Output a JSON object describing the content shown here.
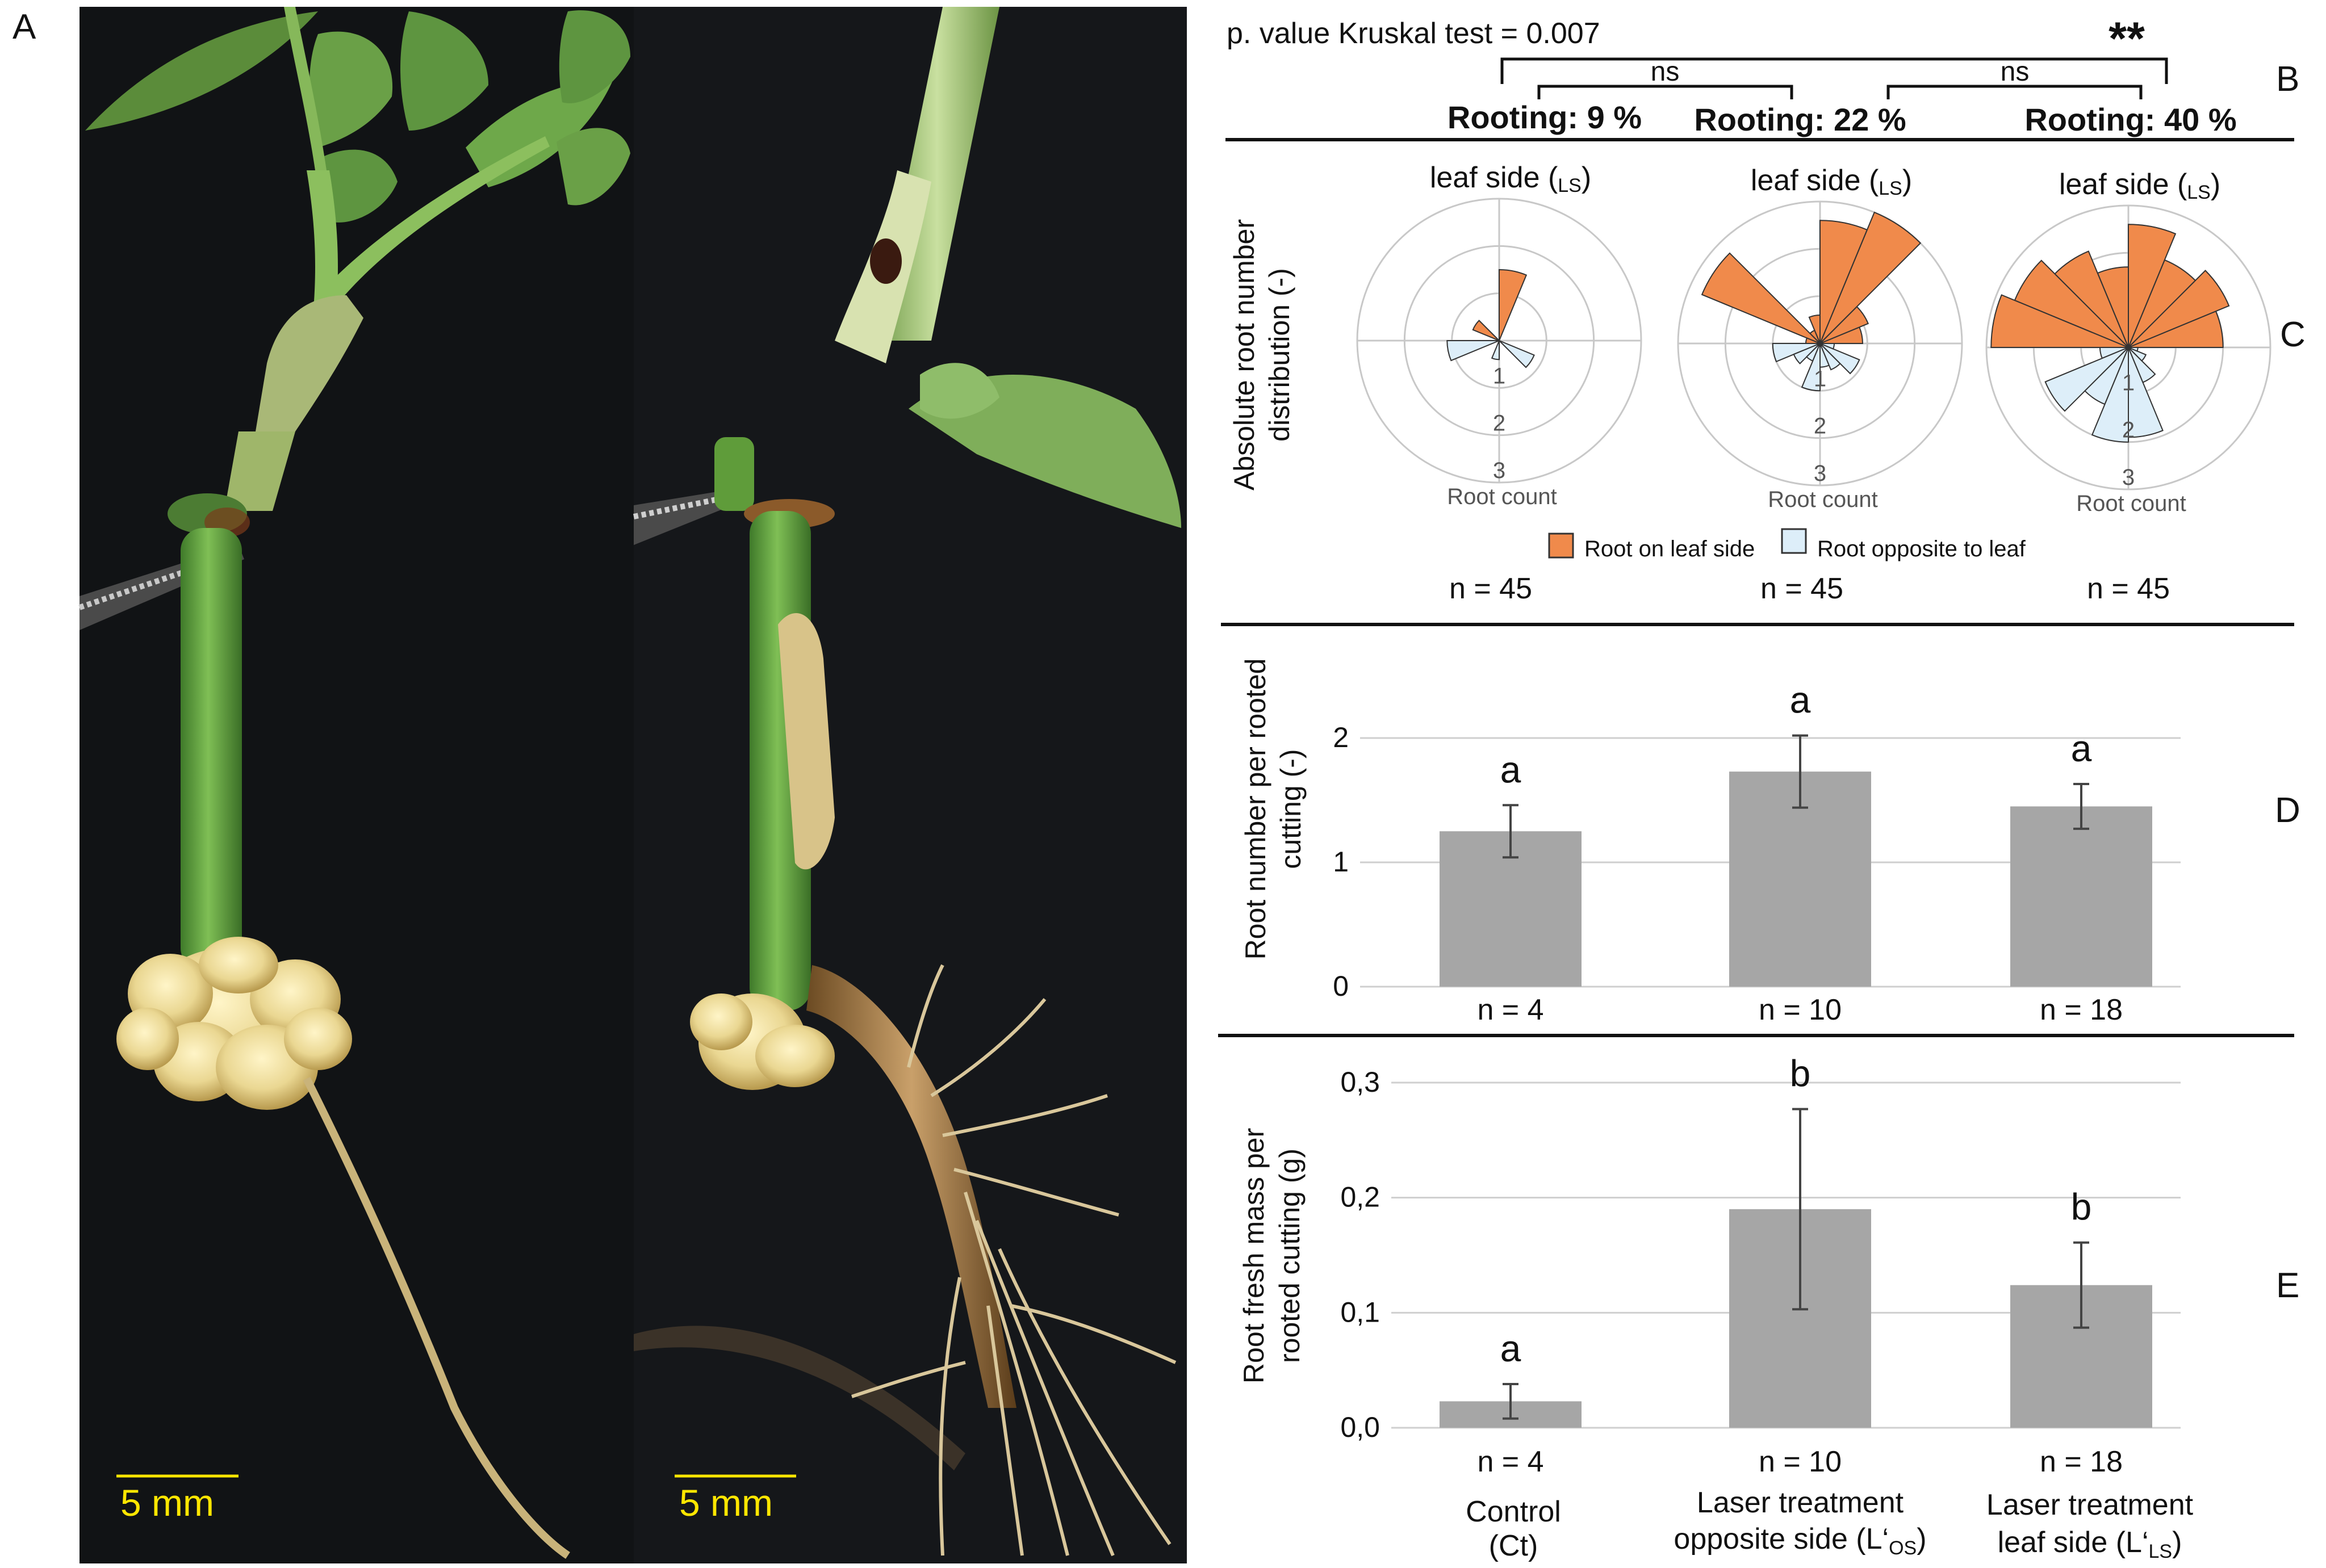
{
  "panels": {
    "a": "A",
    "b": "B",
    "c": "C",
    "d": "D",
    "e": "E"
  },
  "photo": {
    "scale_bar_left": "5 mm",
    "scale_bar_right": "5 mm"
  },
  "significance": {
    "kruskal": "p. value Kruskal test = 0.007",
    "ns1": "ns",
    "ns2": "ns",
    "stars": "**",
    "rooting": [
      "Rooting: 9 %",
      "Rooting: 22 %",
      "Rooting: 40 %"
    ]
  },
  "groups": {
    "control": [
      "Control",
      "(Ct)"
    ],
    "laser_os": [
      "Laser treatment",
      "opposite side (L‘",
      "OS",
      ")"
    ],
    "laser_ls": [
      "Laser treatment",
      "leaf side (L‘",
      "LS",
      ")"
    ]
  },
  "colors": {
    "leaf_side": "#f08a4b",
    "opposite": "#ddeef9",
    "bar": "#a6a6a6",
    "grid": "#cfcfcf",
    "scale_bar": "#ffe600"
  },
  "chart_data": [
    {
      "type": "polar-bar",
      "panel": "C",
      "ylabel": [
        "Absolute root number",
        "distribution  (-)"
      ],
      "top_label": "leaf side (",
      "top_label_sub": "LS",
      "r_label": "Root count",
      "r_ticks": [
        1,
        2,
        3
      ],
      "rmax": 3,
      "legend": [
        "Root on leaf side",
        "Root opposite to leaf"
      ],
      "n_labels": [
        "n = 45",
        "n = 45",
        "n = 45"
      ],
      "sector_width_deg": 22.5,
      "series": [
        {
          "name": "Root on leaf side",
          "groups": [
            {
              "angles": [
                22.5,
                45,
                67.5,
                90,
                112.5,
                135,
                157.5,
                180
              ],
              "values": [
                0,
                0,
                0,
                1.5,
                0,
                0,
                0.6,
                0
              ]
            },
            {
              "angles": [
                22.5,
                45,
                67.5,
                90,
                112.5,
                135,
                157.5,
                180
              ],
              "values": [
                0.9,
                1.1,
                3.0,
                2.6,
                0.6,
                0.3,
                2.7,
                0.3
              ]
            },
            {
              "angles": [
                22.5,
                45,
                67.5,
                90,
                112.5,
                135,
                157.5,
                180
              ],
              "values": [
                2.0,
                2.3,
                2.0,
                2.6,
                1.7,
                2.2,
                2.6,
                2.9
              ]
            }
          ]
        },
        {
          "name": "Root opposite to leaf",
          "groups": [
            {
              "angles": [
                202.5,
                225,
                247.5,
                270,
                292.5,
                315,
                337.5,
                360
              ],
              "values": [
                1.1,
                0,
                0,
                0.4,
                0,
                0,
                0.8,
                0
              ]
            },
            {
              "angles": [
                202.5,
                225,
                247.5,
                270,
                292.5,
                315,
                337.5,
                360
              ],
              "values": [
                1.0,
                0.6,
                0.4,
                1.0,
                0.5,
                0.6,
                0.9,
                0.3
              ]
            },
            {
              "angles": [
                202.5,
                225,
                247.5,
                270,
                292.5,
                315,
                337.5,
                360
              ],
              "values": [
                0.6,
                1.9,
                1.3,
                2.0,
                1.9,
                0.8,
                0.4,
                0.2
              ]
            }
          ]
        }
      ]
    },
    {
      "type": "bar",
      "panel": "D",
      "ylabel": [
        "Root number per rooted",
        "cutting (-)"
      ],
      "categories": [
        "Control (Ct)",
        "Laser treatment opposite side (L‘OS)",
        "Laser treatment leaf side (L‘LS)"
      ],
      "values": [
        1.25,
        1.73,
        1.45
      ],
      "errors": [
        0.21,
        0.29,
        0.18
      ],
      "letters": [
        "a",
        "a",
        "a"
      ],
      "n_labels": [
        "n = 4",
        "n = 10",
        "n = 18"
      ],
      "ylim": [
        0,
        2
      ],
      "yticks": [
        "0",
        "1",
        "2"
      ],
      "grid": true
    },
    {
      "type": "bar",
      "panel": "E",
      "ylabel": [
        "Root fresh mass per",
        "rooted cutting (g)"
      ],
      "categories": [
        "Control (Ct)",
        "Laser treatment opposite side (L‘OS)",
        "Laser treatment leaf side (L‘LS)"
      ],
      "values": [
        0.023,
        0.19,
        0.124
      ],
      "errors": [
        0.015,
        0.087,
        0.037
      ],
      "letters": [
        "a",
        "b",
        "b"
      ],
      "n_labels": [
        "n = 4",
        "n = 10",
        "n = 18"
      ],
      "ylim": [
        0,
        0.3
      ],
      "yticks": [
        "0,0",
        "0,1",
        "0,2",
        "0,3"
      ],
      "grid": true
    }
  ]
}
